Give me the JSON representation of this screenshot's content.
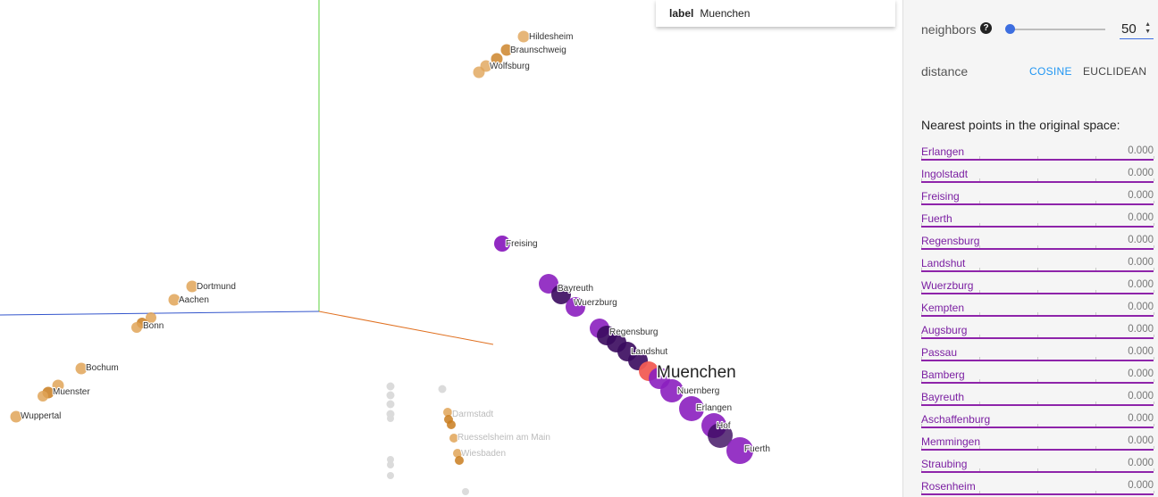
{
  "info_card": {
    "key": "label",
    "value": "Muenchen"
  },
  "neighbors": {
    "label": "neighbors",
    "help_icon": "help-circle-icon",
    "value": "50",
    "slider_fraction": 0.02
  },
  "distance": {
    "label": "distance",
    "options": [
      "COSINE",
      "EUCLIDEAN"
    ],
    "selected": "COSINE"
  },
  "nearest": {
    "title": "Nearest points in the original space:",
    "items": [
      {
        "name": "Erlangen",
        "value": "0.000"
      },
      {
        "name": "Ingolstadt",
        "value": "0.000"
      },
      {
        "name": "Freising",
        "value": "0.000"
      },
      {
        "name": "Fuerth",
        "value": "0.000"
      },
      {
        "name": "Regensburg",
        "value": "0.000"
      },
      {
        "name": "Landshut",
        "value": "0.000"
      },
      {
        "name": "Wuerzburg",
        "value": "0.000"
      },
      {
        "name": "Kempten",
        "value": "0.000"
      },
      {
        "name": "Augsburg",
        "value": "0.000"
      },
      {
        "name": "Passau",
        "value": "0.000"
      },
      {
        "name": "Bamberg",
        "value": "0.000"
      },
      {
        "name": "Bayreuth",
        "value": "0.000"
      },
      {
        "name": "Aschaffenburg",
        "value": "0.000"
      },
      {
        "name": "Memmingen",
        "value": "0.000"
      },
      {
        "name": "Straubing",
        "value": "0.000"
      },
      {
        "name": "Rosenheim",
        "value": "0.000"
      }
    ]
  },
  "projection": {
    "selected_label": "Muenchen",
    "point_labels": {
      "hildesheim": "Hildesheim",
      "braunschweig": "Braunschweig",
      "wolfsburg": "Wolfsburg",
      "freising": "Freising",
      "bayreuth": "Bayreuth",
      "wuerzburg": "Wuerzburg",
      "regensburg": "Regensburg",
      "landshut": "Landshut",
      "nuernberg": "Nuernberg",
      "erlangen": "Erlangen",
      "hof": "Hof",
      "fuerth": "Fuerth",
      "dortmund": "Dortmund",
      "aachen": "Aachen",
      "bonn": "Bonn",
      "bochum": "Bochum",
      "muenster": "Muenster",
      "wuppertal": "Wuppertal",
      "darmstadt": "Darmstadt",
      "ruesselsheim": "Ruesselsheim am Main",
      "wiesbaden": "Wiesbaden"
    },
    "colors": {
      "orange": "#e0a458",
      "orange_dark": "#c97d1e",
      "purple": "#8b1fbf",
      "purple_dark": "#3a0a5e",
      "selected": "#f25c54",
      "grey": "#d8d8d8"
    }
  }
}
